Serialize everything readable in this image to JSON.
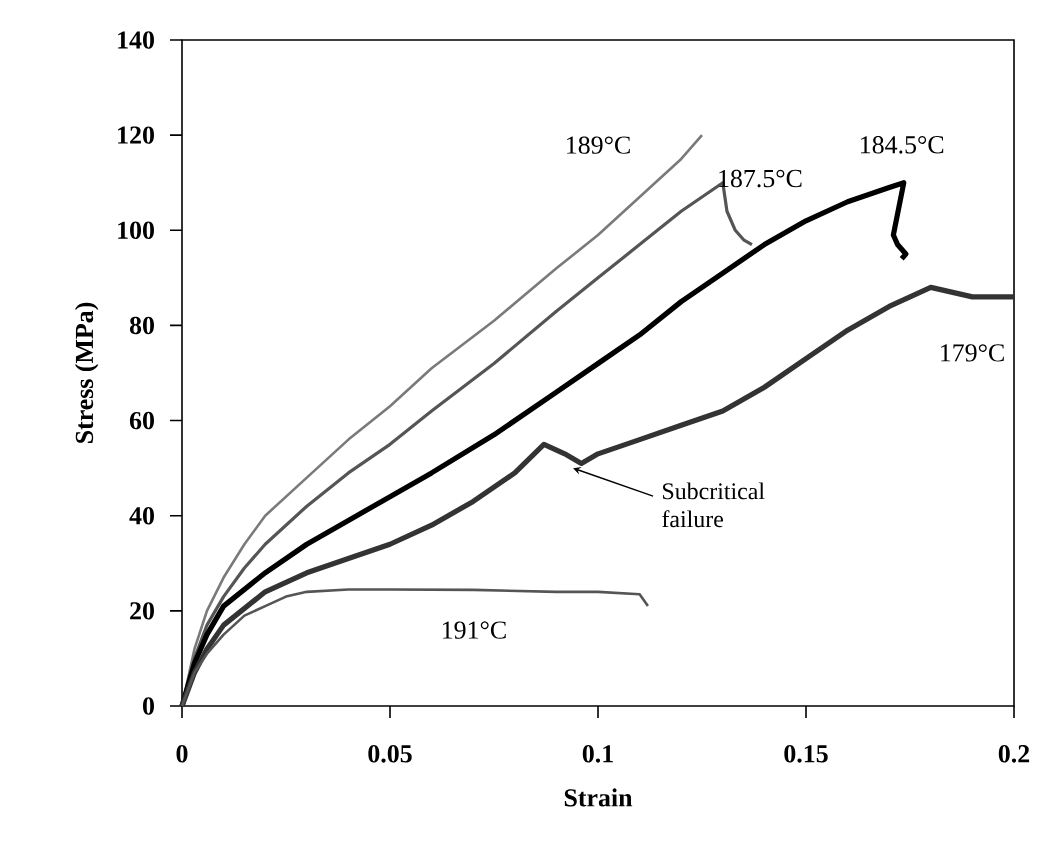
{
  "chart_data": {
    "type": "line",
    "xlabel": "Strain",
    "ylabel": "Stress (MPa)",
    "xlim": [
      0,
      0.2
    ],
    "ylim": [
      0,
      140
    ],
    "xticks": [
      0,
      0.05,
      0.1,
      0.15,
      0.2
    ],
    "yticks": [
      0,
      20,
      40,
      60,
      80,
      100,
      120,
      140
    ],
    "grid": false,
    "marker": "none",
    "line_style": "solid",
    "series": [
      {
        "name": "189°C",
        "color": "#7a7a7a",
        "x": [
          0,
          0.003,
          0.006,
          0.01,
          0.015,
          0.02,
          0.03,
          0.04,
          0.05,
          0.06,
          0.075,
          0.09,
          0.1,
          0.11,
          0.12,
          0.125
        ],
        "values": [
          0,
          12,
          20,
          27,
          34,
          40,
          48,
          56,
          63,
          71,
          81,
          92,
          99,
          107,
          115,
          120
        ]
      },
      {
        "name": "187.5°C",
        "color": "#555555",
        "x": [
          0,
          0.003,
          0.006,
          0.01,
          0.015,
          0.02,
          0.03,
          0.04,
          0.05,
          0.06,
          0.075,
          0.09,
          0.1,
          0.11,
          0.12,
          0.13,
          0.131,
          0.133,
          0.135,
          0.137
        ],
        "values": [
          0,
          10,
          17,
          23,
          29,
          34,
          42,
          49,
          55,
          62,
          72,
          83,
          90,
          97,
          104,
          110,
          104,
          100,
          98,
          97
        ]
      },
      {
        "name": "184.5°C",
        "color": "#000000",
        "x": [
          0,
          0.003,
          0.006,
          0.01,
          0.02,
          0.03,
          0.04,
          0.05,
          0.06,
          0.075,
          0.09,
          0.1,
          0.11,
          0.12,
          0.13,
          0.14,
          0.15,
          0.16,
          0.17,
          0.1735,
          0.171,
          0.172,
          0.174,
          0.173
        ],
        "values": [
          0,
          9,
          15,
          21,
          28,
          34,
          39,
          44,
          49,
          57,
          66,
          72,
          78,
          85,
          91,
          97,
          102,
          106,
          109,
          110,
          99,
          97,
          95,
          94
        ]
      },
      {
        "name": "179°C",
        "color": "#333333",
        "x": [
          0,
          0.003,
          0.006,
          0.01,
          0.02,
          0.03,
          0.04,
          0.05,
          0.06,
          0.07,
          0.08,
          0.087,
          0.092,
          0.096,
          0.1,
          0.11,
          0.12,
          0.13,
          0.14,
          0.15,
          0.16,
          0.17,
          0.18,
          0.19,
          0.2
        ],
        "values": [
          0,
          7,
          12,
          17,
          24,
          28,
          31,
          34,
          38,
          43,
          49,
          55,
          53,
          51,
          53,
          56,
          59,
          62,
          67,
          73,
          79,
          84,
          88,
          86,
          86
        ]
      },
      {
        "name": "191°C",
        "color": "#555555",
        "x": [
          0,
          0.003,
          0.006,
          0.01,
          0.015,
          0.02,
          0.025,
          0.03,
          0.04,
          0.05,
          0.07,
          0.09,
          0.1,
          0.11,
          0.112
        ],
        "values": [
          0,
          7,
          11,
          15,
          19,
          21,
          23,
          24,
          24.5,
          24.5,
          24.4,
          24,
          24,
          23.5,
          21
        ]
      }
    ],
    "annotations": [
      {
        "text": "Subcritical failure",
        "x": 0.094,
        "y": 50
      }
    ]
  }
}
